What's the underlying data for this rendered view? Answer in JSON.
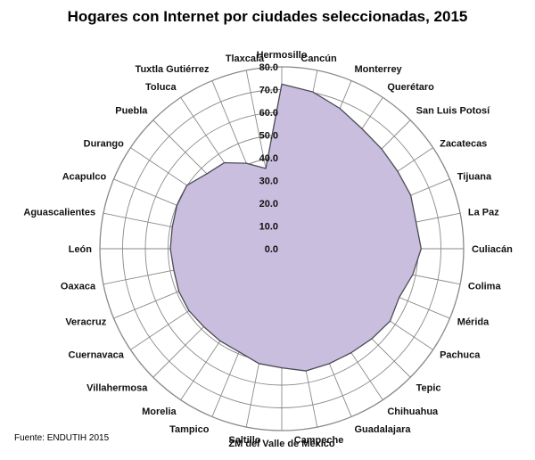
{
  "chart_data": {
    "type": "radar",
    "title": "Hogares con Internet por ciudades seleccionadas, 2015",
    "source": "Fuente: ENDUTIH 2015",
    "rlim": [
      0,
      80
    ],
    "ticks": [
      "0.0",
      "10.0",
      "20.0",
      "30.0",
      "40.0",
      "50.0",
      "60.0",
      "70.0",
      "80.0"
    ],
    "grid": true,
    "colors": {
      "fill": "#c9bedd",
      "stroke": "#4a4a55",
      "grid": "#8a8a8a"
    },
    "categories": [
      "Hermosillo",
      "Cancún",
      "Monterrey",
      "Querétaro",
      "San Luis Potosí",
      "Zacatecas",
      "Tijuana",
      "La Paz",
      "Culiacán",
      "Colima",
      "Mérida",
      "Pachuca",
      "Tepic",
      "Chihuahua",
      "Guadalajara",
      "Campeche",
      "ZM del Valle de México",
      "Saltillo",
      "Tampico",
      "Morelia",
      "Villahermosa",
      "Cuernavaca",
      "Veracruz",
      "Oaxaca",
      "León",
      "Aguascalientes",
      "Acapulco",
      "Durango",
      "Puebla",
      "Toluca",
      "Tuxtla Gutiérrez",
      "Tlaxcala"
    ],
    "values": [
      72.4,
      70.3,
      66.8,
      63.5,
      62.1,
      61.3,
      61.4,
      60.2,
      61.3,
      58.7,
      55.9,
      57.3,
      56.0,
      55.0,
      54.7,
      54.8,
      52.4,
      51.5,
      49.1,
      48.8,
      48.5,
      49.1,
      49.0,
      48.4,
      49.0,
      49.1,
      49.9,
      50.2,
      46.6,
      45.5,
      40.7,
      36.0
    ]
  }
}
